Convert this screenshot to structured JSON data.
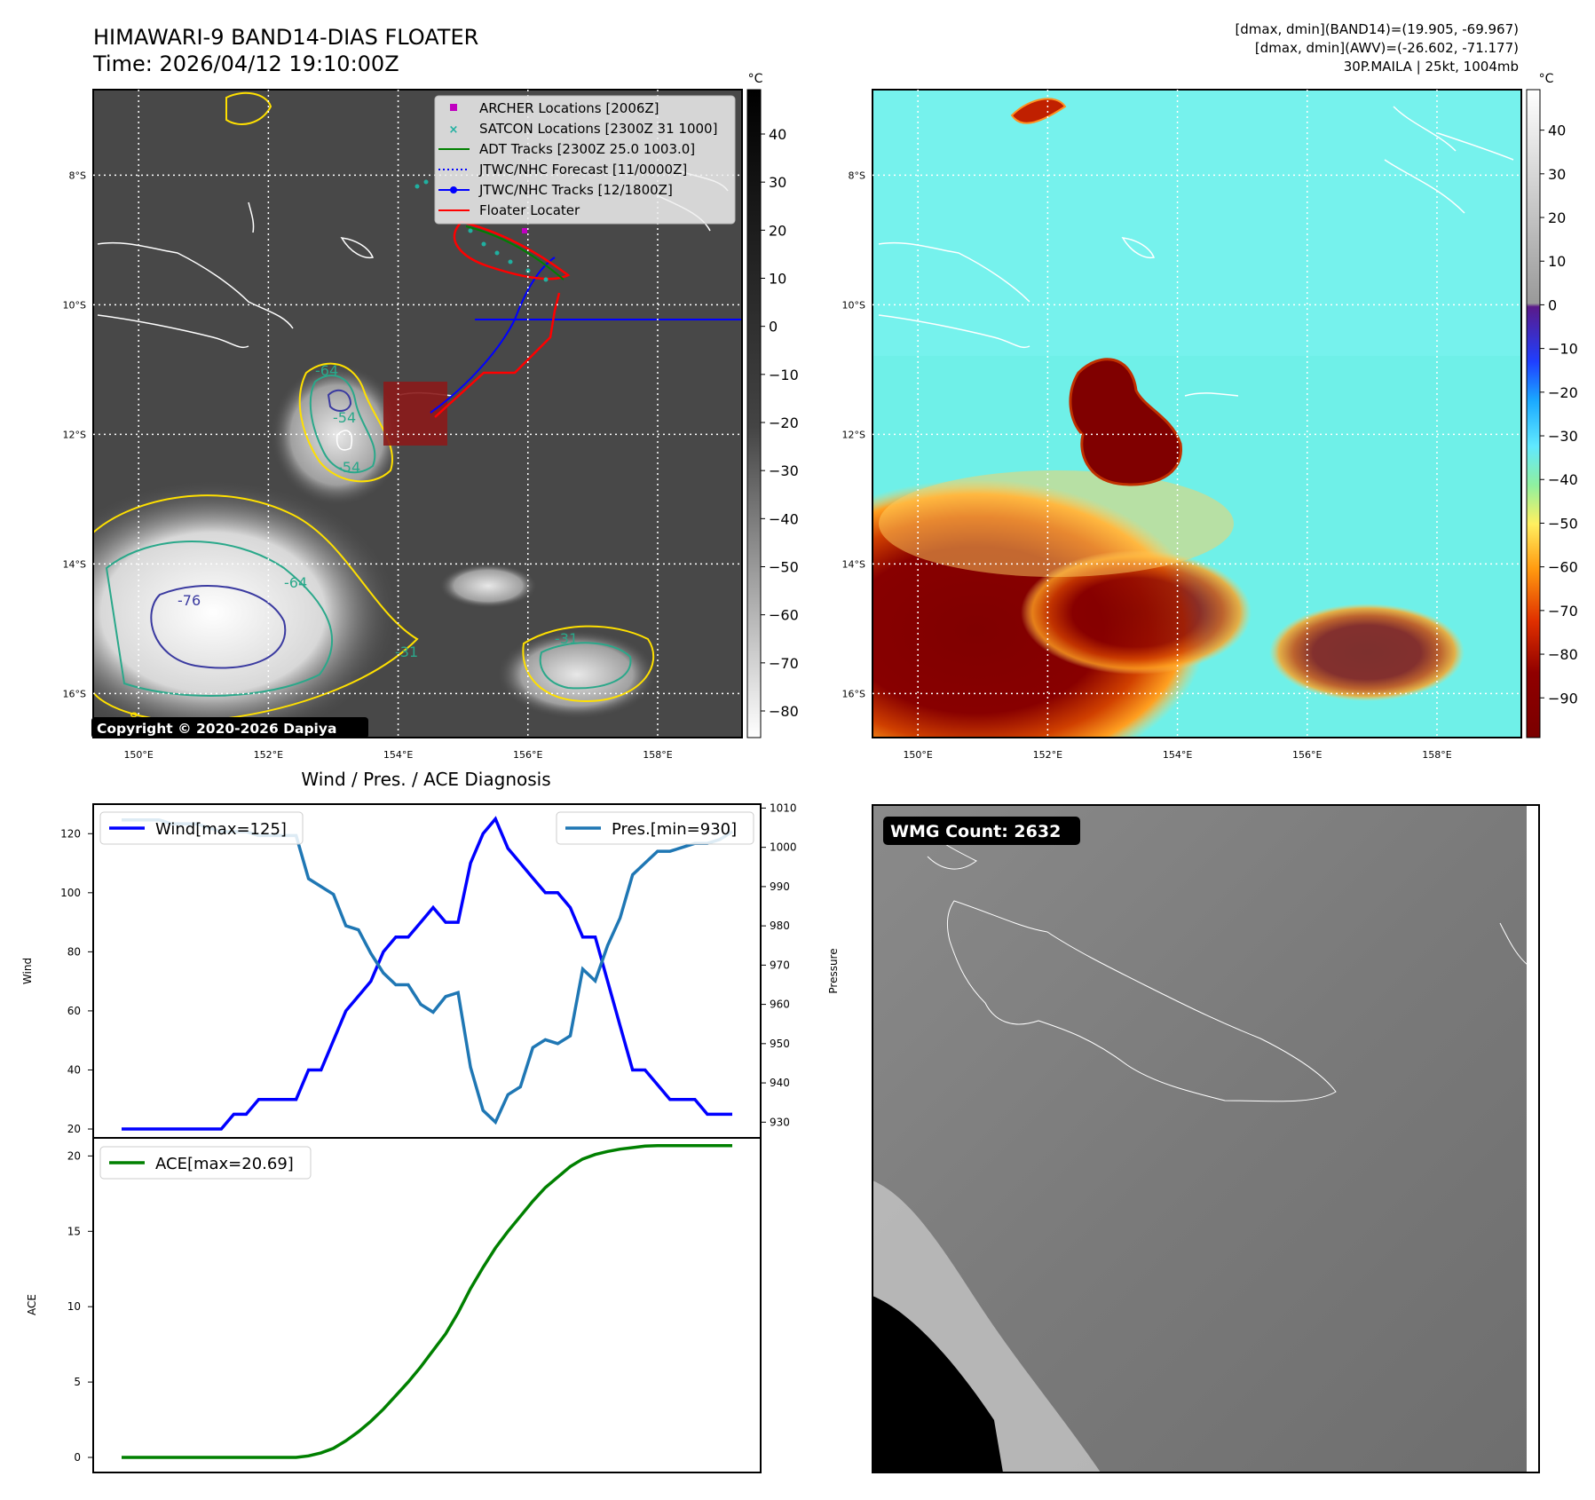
{
  "header": {
    "title_line1": "HIMAWARI-9 BAND14-DIAS FLOATER",
    "title_line2": "Time: 2026/04/12 19:10:00Z",
    "stats_line1": "[dmax, dmin](BAND14)=(19.905, -69.967)",
    "stats_line2": "[dmax, dmin](AWV)=(-26.602, -71.177)",
    "stats_line3": "30P.MAILA | 25kt, 1004mb"
  },
  "map_ir": {
    "lat_ticks": [
      "8°S",
      "10°S",
      "12°S",
      "14°S",
      "16°S"
    ],
    "lon_ticks": [
      "150°E",
      "152°E",
      "154°E",
      "156°E",
      "158°E"
    ],
    "contour_labels": [
      "-64",
      "-54",
      "-54",
      "-76",
      "-64",
      "-31",
      "-31",
      "-8"
    ],
    "copyright": "Copyright © 2020-2026 Dapiya",
    "colorbar_unit": "°C",
    "colorbar_ticks": [
      "40",
      "30",
      "20",
      "10",
      "0",
      "−10",
      "−20",
      "−30",
      "−40",
      "−50",
      "−60",
      "−70",
      "−80"
    ],
    "legend": [
      {
        "label": "ARCHER Locations [2006Z]",
        "color": "#c000c0",
        "icon": "square-marker"
      },
      {
        "label": "SATCON Locations [2300Z 31 1000]",
        "color": "#20b0a0",
        "icon": "x-marker"
      },
      {
        "label": "ADT Tracks [2300Z 25.0 1003.0]",
        "color": "#008000",
        "icon": "line"
      },
      {
        "label": "JTWC/NHC Forecast [11/0000Z]",
        "color": "#0000ff",
        "icon": "dotted-line"
      },
      {
        "label": "JTWC/NHC Tracks [12/1800Z]",
        "color": "#0000ff",
        "icon": "line-dot"
      },
      {
        "label": "Floater Locater",
        "color": "#ff0000",
        "icon": "line"
      }
    ]
  },
  "map_wv": {
    "lat_ticks": [
      "8°S",
      "10°S",
      "12°S",
      "14°S",
      "16°S"
    ],
    "lon_ticks": [
      "150°E",
      "152°E",
      "154°E",
      "156°E",
      "158°E"
    ],
    "colorbar_unit": "°C",
    "colorbar_ticks": [
      "40",
      "30",
      "20",
      "10",
      "0",
      "−10",
      "−20",
      "−30",
      "−40",
      "−50",
      "−60",
      "−70",
      "−80",
      "−90"
    ]
  },
  "wmg": {
    "badge": "WMG Count: 2632"
  },
  "chart_data": [
    {
      "type": "line",
      "title": "Wind / Pres. / ACE Diagnosis",
      "ylabel": "Wind",
      "y2label": "Pressure",
      "ylim": [
        17,
        130
      ],
      "y2lim": [
        926,
        1011
      ],
      "yticks": [
        20,
        40,
        60,
        80,
        100,
        120
      ],
      "y2ticks": [
        930,
        940,
        950,
        960,
        970,
        980,
        990,
        1000,
        1010
      ],
      "series": [
        {
          "name": "Wind[max=125]",
          "color": "#0000ff",
          "axis": "left",
          "values": [
            20,
            20,
            20,
            20,
            20,
            20,
            20,
            20,
            20,
            25,
            25,
            30,
            30,
            30,
            30,
            40,
            40,
            50,
            60,
            65,
            70,
            80,
            85,
            85,
            90,
            95,
            90,
            90,
            110,
            120,
            125,
            115,
            110,
            105,
            100,
            100,
            95,
            85,
            85,
            70,
            55,
            40,
            40,
            35,
            30,
            30,
            30,
            25,
            25,
            25
          ]
        },
        {
          "name": "Pres.[min=930]",
          "color": "#1f77b4",
          "axis": "right",
          "values": [
            1007,
            1007,
            1007,
            1007,
            1006,
            1006,
            1006,
            1005,
            1004,
            1004,
            1004,
            1003,
            1003,
            1003,
            1003,
            992,
            990,
            988,
            980,
            979,
            973,
            968,
            965,
            965,
            960,
            958,
            962,
            963,
            944,
            933,
            930,
            937,
            939,
            949,
            951,
            950,
            952,
            969,
            966,
            975,
            982,
            993,
            996,
            999,
            999,
            1000,
            1001,
            1001,
            1002,
            1004
          ]
        }
      ]
    },
    {
      "type": "line",
      "ylabel": "ACE",
      "ylim": [
        -1,
        21.2
      ],
      "yticks": [
        0,
        5,
        10,
        15,
        20
      ],
      "series": [
        {
          "name": "ACE[max=20.69]",
          "color": "#008000",
          "values": [
            0,
            0,
            0,
            0,
            0,
            0,
            0,
            0,
            0,
            0,
            0,
            0,
            0,
            0,
            0,
            0.1,
            0.3,
            0.6,
            1.1,
            1.7,
            2.4,
            3.2,
            4.1,
            5.0,
            6.0,
            7.1,
            8.2,
            9.6,
            11.2,
            12.6,
            13.9,
            15.0,
            16.0,
            17.0,
            17.9,
            18.6,
            19.3,
            19.8,
            20.1,
            20.3,
            20.45,
            20.55,
            20.65,
            20.69,
            20.69,
            20.69,
            20.69,
            20.69,
            20.69,
            20.69
          ]
        }
      ]
    }
  ]
}
